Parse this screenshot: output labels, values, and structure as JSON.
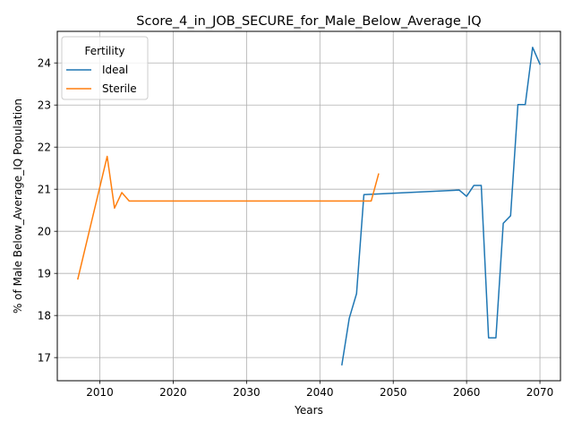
{
  "chart_data": {
    "type": "line",
    "title": "Score_4_in_JOB_SECURE_for_Male_Below_Average_IQ",
    "xlabel": "Years",
    "ylabel": "% of Male Below_Average_IQ Population",
    "xlim": [
      2004.2,
      2072.8
    ],
    "ylim": [
      16.45,
      24.75
    ],
    "xticks": [
      2010,
      2020,
      2030,
      2040,
      2050,
      2060,
      2070
    ],
    "yticks": [
      17,
      18,
      19,
      20,
      21,
      22,
      23,
      24
    ],
    "grid": true,
    "legend": {
      "title": "Fertility",
      "position": "top-left"
    },
    "series": [
      {
        "name": "Ideal",
        "color": "#1f77b4",
        "x": [
          2043,
          2044,
          2045,
          2046,
          2047,
          2059,
          2060,
          2061,
          2062,
          2063,
          2064,
          2065,
          2066,
          2067,
          2068,
          2069,
          2070
        ],
        "y": [
          16.83,
          17.93,
          18.52,
          20.87,
          20.88,
          20.98,
          20.83,
          21.09,
          21.09,
          17.47,
          17.47,
          20.19,
          20.37,
          23.01,
          23.01,
          24.37,
          23.97
        ]
      },
      {
        "name": "Sterile",
        "color": "#ff7f0e",
        "x": [
          2007,
          2011,
          2012,
          2013,
          2014,
          2015,
          2046,
          2047,
          2048
        ],
        "y": [
          18.87,
          21.78,
          20.55,
          20.92,
          20.72,
          20.72,
          20.72,
          20.72,
          21.36
        ]
      }
    ]
  }
}
